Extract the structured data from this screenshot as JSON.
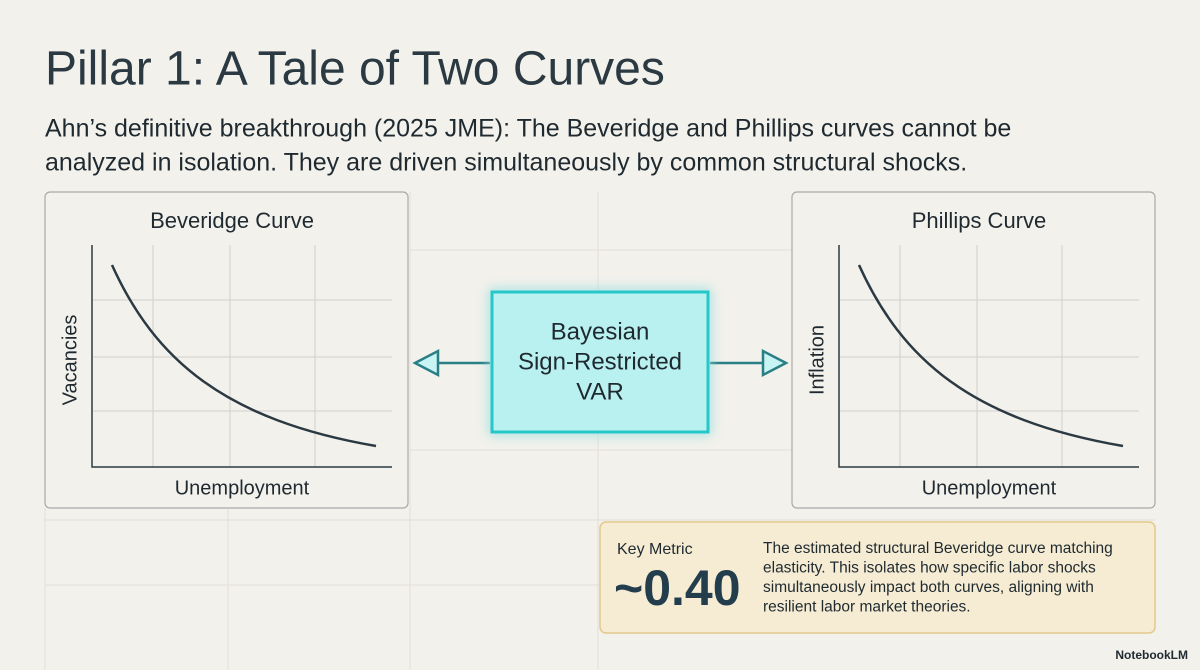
{
  "header": {
    "title": "Pillar 1: A Tale of Two Curves",
    "subtitle": [
      "Ahn’s definitive breakthrough (2025 JME): The Beveridge and Phillips curves cannot be",
      "analyzed in isolation. They are driven simultaneously by common structural shocks."
    ]
  },
  "panels": [
    {
      "title": "Beveridge Curve",
      "x_label": "Unemployment",
      "y_label": "Vacancies"
    },
    {
      "title": "Phillips Curve",
      "x_label": "Unemployment",
      "y_label": "Inflation"
    }
  ],
  "center": {
    "lines": [
      "Bayesian",
      "Sign-Restricted",
      "VAR"
    ]
  },
  "key_metric": {
    "label": "Key Metric",
    "value": "~0.40",
    "description": [
      "The estimated structural Beveridge curve matching",
      "elasticity. This isolates how specific labor shocks",
      "simultaneously impact both curves, aligning with",
      "resilient labor market theories."
    ]
  },
  "watermark": "NotebookLM"
}
